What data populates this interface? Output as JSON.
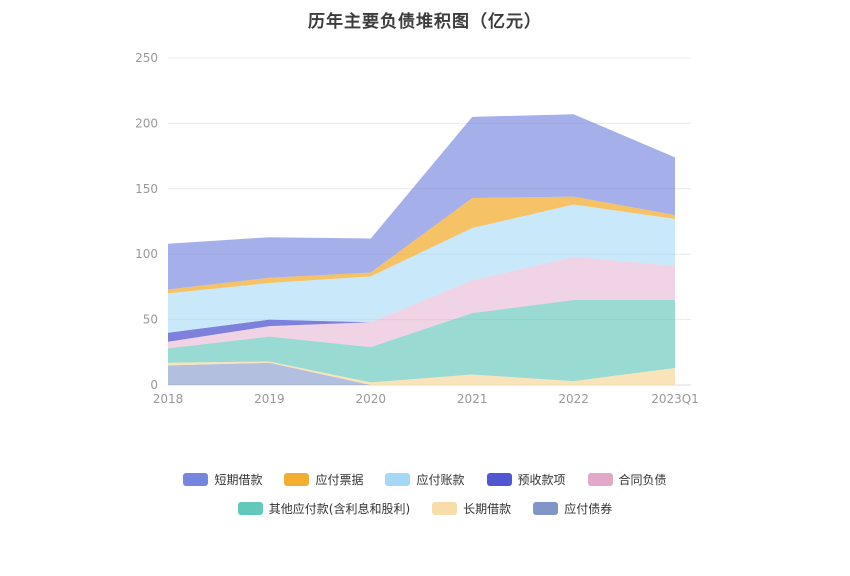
{
  "title": "历年主要负债堆积图（亿元）",
  "chart_data": {
    "type": "area",
    "stacked": true,
    "title": "历年主要负债堆积图（亿元）",
    "x": [
      "2018",
      "2019",
      "2020",
      "2021",
      "2022",
      "2023Q1"
    ],
    "ylim": [
      0,
      250
    ],
    "yticks": [
      0,
      50,
      100,
      150,
      200,
      250
    ],
    "grid": true,
    "legend_position": "bottom",
    "series": [
      {
        "name": "应付债券",
        "color": "#8095c8",
        "opacity": 0.6,
        "values": [
          15,
          17,
          0,
          0,
          0,
          0
        ]
      },
      {
        "name": "长期借款",
        "color": "#f8dcaa",
        "opacity": 0.8,
        "values": [
          2,
          1,
          2,
          8,
          3,
          13
        ]
      },
      {
        "name": "其他应付款(含利息和股利)",
        "color": "#63c8bc",
        "opacity": 0.65,
        "values": [
          11,
          19,
          27,
          47,
          62,
          52
        ]
      },
      {
        "name": "合同负债",
        "color": "#e2a7c9",
        "opacity": 0.5,
        "values": [
          5,
          8,
          19,
          25,
          33,
          26
        ]
      },
      {
        "name": "预收款项",
        "color": "#5157d0",
        "opacity": 0.75,
        "values": [
          7,
          5,
          0,
          0,
          0,
          0
        ]
      },
      {
        "name": "应付账款",
        "color": "#a5d8f7",
        "opacity": 0.6,
        "values": [
          30,
          28,
          35,
          40,
          40,
          36
        ]
      },
      {
        "name": "应付票据",
        "color": "#f2ae33",
        "opacity": 0.75,
        "values": [
          3,
          4,
          3,
          23,
          6,
          3
        ]
      },
      {
        "name": "短期借款",
        "color": "#7586e1",
        "opacity": 0.65,
        "values": [
          35,
          31,
          26,
          62,
          63,
          44
        ]
      }
    ],
    "legend_order": [
      "短期借款",
      "应付票据",
      "应付账款",
      "预收款项",
      "合同负债",
      "其他应付款(含利息和股利)",
      "长期借款",
      "应付债券"
    ],
    "legend_rows": [
      5,
      3
    ]
  }
}
